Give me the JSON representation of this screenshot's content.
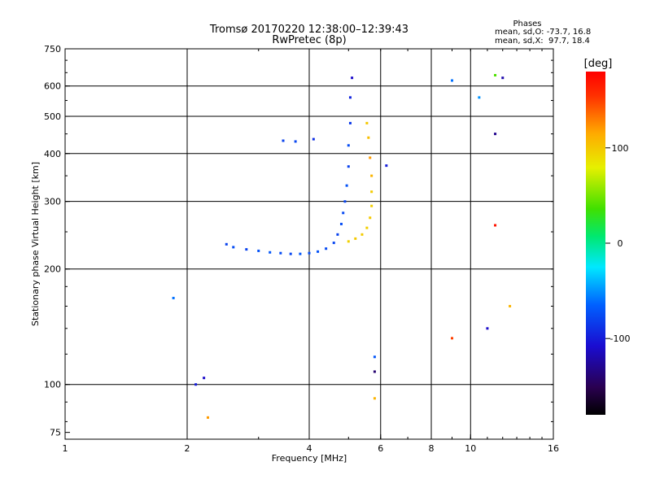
{
  "chart_data": {
    "type": "scatter",
    "title": "Tromsø 20170220 12:38:00–12:39:43",
    "subtitle": "RwPretec (8p)",
    "xlabel": "Frequency [MHz]",
    "ylabel": "Stationary phase Virtual Height [km]",
    "x_scale": "log",
    "y_scale": "log",
    "xlim": [
      1,
      16
    ],
    "ylim": [
      72,
      750
    ],
    "x_ticks": [
      1,
      2,
      4,
      6,
      8,
      10,
      16
    ],
    "y_ticks": [
      75,
      100,
      200,
      300,
      400,
      500,
      600,
      750
    ],
    "x_gridlines": [
      2,
      4,
      6,
      8,
      10
    ],
    "y_gridlines": [
      100,
      200,
      300,
      400,
      500,
      600
    ],
    "grid": true,
    "stats": {
      "heading": "Phases",
      "line_o": "mean, sd,O: -73.7, 16.8",
      "line_x": "mean, sd,X:  97.7, 18.4"
    },
    "colorbar": {
      "label": "[deg]",
      "range": [
        -180,
        180
      ],
      "ticks": [
        -100,
        0,
        100
      ]
    },
    "trace_points": [
      {
        "x": 2.5,
        "y": 232,
        "phase": -80
      },
      {
        "x": 2.6,
        "y": 228,
        "phase": -75
      },
      {
        "x": 2.8,
        "y": 225,
        "phase": -80
      },
      {
        "x": 3.0,
        "y": 223,
        "phase": -72
      },
      {
        "x": 3.2,
        "y": 221,
        "phase": -70
      },
      {
        "x": 3.4,
        "y": 220,
        "phase": -75
      },
      {
        "x": 3.6,
        "y": 219,
        "phase": -78
      },
      {
        "x": 3.8,
        "y": 219,
        "phase": -70
      },
      {
        "x": 4.0,
        "y": 220,
        "phase": -74
      },
      {
        "x": 4.2,
        "y": 222,
        "phase": -72
      },
      {
        "x": 4.4,
        "y": 226,
        "phase": -76
      },
      {
        "x": 4.6,
        "y": 234,
        "phase": -78
      },
      {
        "x": 4.7,
        "y": 246,
        "phase": -80
      },
      {
        "x": 4.8,
        "y": 262,
        "phase": -74
      },
      {
        "x": 4.85,
        "y": 280,
        "phase": -76
      },
      {
        "x": 4.9,
        "y": 300,
        "phase": -78
      },
      {
        "x": 4.95,
        "y": 330,
        "phase": -72
      },
      {
        "x": 5.0,
        "y": 370,
        "phase": -80
      },
      {
        "x": 5.0,
        "y": 420,
        "phase": -75
      },
      {
        "x": 5.05,
        "y": 480,
        "phase": -85
      },
      {
        "x": 5.05,
        "y": 560,
        "phase": -95
      },
      {
        "x": 5.1,
        "y": 630,
        "phase": -110
      },
      {
        "x": 3.45,
        "y": 432,
        "phase": -80
      },
      {
        "x": 3.7,
        "y": 430,
        "phase": -78
      },
      {
        "x": 4.1,
        "y": 436,
        "phase": -90
      },
      {
        "x": 5.0,
        "y": 236,
        "phase": 95
      },
      {
        "x": 5.2,
        "y": 240,
        "phase": 100
      },
      {
        "x": 5.4,
        "y": 246,
        "phase": 98
      },
      {
        "x": 5.55,
        "y": 256,
        "phase": 96
      },
      {
        "x": 5.65,
        "y": 272,
        "phase": 100
      },
      {
        "x": 5.7,
        "y": 292,
        "phase": 97
      },
      {
        "x": 5.7,
        "y": 318,
        "phase": 98
      },
      {
        "x": 5.7,
        "y": 350,
        "phase": 110
      },
      {
        "x": 5.65,
        "y": 390,
        "phase": 120
      },
      {
        "x": 5.6,
        "y": 440,
        "phase": 105
      },
      {
        "x": 5.55,
        "y": 480,
        "phase": 100
      },
      {
        "x": 1.85,
        "y": 168,
        "phase": -60
      },
      {
        "x": 2.1,
        "y": 100,
        "phase": -100
      },
      {
        "x": 2.2,
        "y": 104,
        "phase": -110
      },
      {
        "x": 2.25,
        "y": 82,
        "phase": 120
      },
      {
        "x": 9.0,
        "y": 620,
        "phase": -60
      },
      {
        "x": 9.0,
        "y": 132,
        "phase": 150
      },
      {
        "x": 10.5,
        "y": 560,
        "phase": -50
      },
      {
        "x": 11.0,
        "y": 140,
        "phase": -110
      },
      {
        "x": 11.5,
        "y": 640,
        "phase": 40
      },
      {
        "x": 12.0,
        "y": 630,
        "phase": -120
      },
      {
        "x": 11.5,
        "y": 450,
        "phase": -130
      },
      {
        "x": 11.5,
        "y": 260,
        "phase": 170
      },
      {
        "x": 12.5,
        "y": 160,
        "phase": 110
      },
      {
        "x": 6.2,
        "y": 372,
        "phase": -100
      },
      {
        "x": 5.8,
        "y": 118,
        "phase": -70
      },
      {
        "x": 5.8,
        "y": 108,
        "phase": -140
      },
      {
        "x": 5.8,
        "y": 92,
        "phase": 110
      }
    ]
  }
}
